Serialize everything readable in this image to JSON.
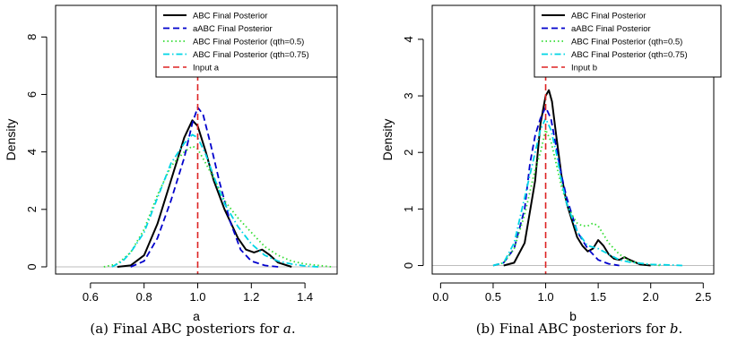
{
  "chart_data": [
    {
      "type": "line",
      "caption_prefix": "(a) Final ABC posteriors for ",
      "caption_var": "a",
      "caption_suffix": ".",
      "xlabel": "a",
      "ylabel": "Density",
      "xlim": [
        0.47,
        1.52
      ],
      "ylim": [
        -0.25,
        9.1
      ],
      "xticks": [
        0.6,
        0.8,
        1.0,
        1.2,
        1.4
      ],
      "xtick_labels": [
        "0.6",
        "0.8",
        "1.0",
        "1.2",
        "1.4"
      ],
      "yticks": [
        0,
        2,
        4,
        6,
        8
      ],
      "ytick_labels": [
        "0",
        "2",
        "4",
        "6",
        "8"
      ],
      "legend_position": "top-right",
      "input_value": 1.0,
      "input_label": "Input a",
      "series": [
        {
          "name": "ABC Final Posterior",
          "color": "#000000",
          "dash": "solid",
          "x": [
            0.7,
            0.75,
            0.8,
            0.85,
            0.9,
            0.95,
            0.98,
            1.0,
            1.03,
            1.06,
            1.1,
            1.15,
            1.18,
            1.21,
            1.24,
            1.27,
            1.3,
            1.35
          ],
          "y": [
            0.0,
            0.05,
            0.4,
            1.5,
            3.0,
            4.5,
            5.1,
            4.9,
            4.0,
            3.0,
            2.0,
            1.0,
            0.6,
            0.5,
            0.6,
            0.4,
            0.15,
            0.0
          ]
        },
        {
          "name": "aABC Final Posterior",
          "color": "#0000cc",
          "dash": "dashed",
          "x": [
            0.75,
            0.8,
            0.85,
            0.9,
            0.95,
            0.98,
            1.0,
            1.02,
            1.05,
            1.08,
            1.12,
            1.16,
            1.2,
            1.25,
            1.3
          ],
          "y": [
            0.0,
            0.2,
            1.0,
            2.3,
            3.8,
            5.0,
            5.55,
            5.3,
            4.2,
            3.0,
            1.6,
            0.6,
            0.2,
            0.05,
            0.0
          ]
        },
        {
          "name": "ABC Final Posterior (qth=0.5)",
          "color": "#33dd33",
          "dash": "dotted",
          "x": [
            0.65,
            0.7,
            0.75,
            0.8,
            0.85,
            0.9,
            0.95,
            0.98,
            1.0,
            1.03,
            1.07,
            1.1,
            1.15,
            1.2,
            1.25,
            1.3,
            1.35,
            1.4,
            1.45,
            1.5
          ],
          "y": [
            0.0,
            0.1,
            0.5,
            1.3,
            2.5,
            3.5,
            4.0,
            4.2,
            4.1,
            3.6,
            2.9,
            2.3,
            1.7,
            1.2,
            0.7,
            0.4,
            0.2,
            0.1,
            0.05,
            0.0
          ]
        },
        {
          "name": "ABC Final Posterior (qth=0.75)",
          "color": "#00d5e5",
          "dash": "dashdot",
          "x": [
            0.68,
            0.72,
            0.75,
            0.8,
            0.85,
            0.9,
            0.95,
            0.98,
            1.0,
            1.03,
            1.07,
            1.1,
            1.15,
            1.2,
            1.25,
            1.3,
            1.35,
            1.4,
            1.45
          ],
          "y": [
            0.0,
            0.2,
            0.5,
            1.2,
            2.4,
            3.6,
            4.3,
            4.6,
            4.5,
            3.9,
            2.9,
            2.2,
            1.4,
            0.8,
            0.4,
            0.2,
            0.1,
            0.03,
            0.0
          ]
        }
      ]
    },
    {
      "type": "line",
      "caption_prefix": "(b) Final ABC posteriors for ",
      "caption_var": "b",
      "caption_suffix": ".",
      "xlabel": "b",
      "ylabel": "Density",
      "xlim": [
        -0.08,
        2.6
      ],
      "ylim": [
        -0.15,
        4.6
      ],
      "xticks": [
        0.0,
        0.5,
        1.0,
        1.5,
        2.0,
        2.5
      ],
      "xtick_labels": [
        "0.0",
        "0.5",
        "1.0",
        "1.5",
        "2.0",
        "2.5"
      ],
      "yticks": [
        0,
        1,
        2,
        3,
        4
      ],
      "ytick_labels": [
        "0",
        "1",
        "2",
        "3",
        "4"
      ],
      "legend_position": "top-right",
      "input_value": 1.0,
      "input_label": "Input b",
      "series": [
        {
          "name": "ABC Final Posterior",
          "color": "#000000",
          "dash": "solid",
          "x": [
            0.6,
            0.7,
            0.8,
            0.9,
            0.95,
            1.0,
            1.03,
            1.06,
            1.1,
            1.15,
            1.2,
            1.25,
            1.3,
            1.35,
            1.4,
            1.45,
            1.5,
            1.55,
            1.6,
            1.65,
            1.7,
            1.75,
            1.8,
            1.9,
            2.0
          ],
          "y": [
            0.0,
            0.05,
            0.4,
            1.5,
            2.5,
            3.0,
            3.1,
            2.9,
            2.3,
            1.6,
            1.1,
            0.8,
            0.5,
            0.35,
            0.25,
            0.3,
            0.45,
            0.35,
            0.2,
            0.12,
            0.1,
            0.15,
            0.1,
            0.02,
            0.0
          ]
        },
        {
          "name": "aABC Final Posterior",
          "color": "#0000cc",
          "dash": "dashed",
          "x": [
            0.5,
            0.6,
            0.7,
            0.8,
            0.85,
            0.9,
            0.95,
            1.0,
            1.05,
            1.1,
            1.15,
            1.2,
            1.3,
            1.4,
            1.5,
            1.6,
            1.7
          ],
          "y": [
            0.0,
            0.05,
            0.3,
            1.0,
            1.8,
            2.3,
            2.6,
            2.8,
            2.6,
            2.1,
            1.6,
            1.2,
            0.6,
            0.3,
            0.1,
            0.03,
            0.0
          ]
        },
        {
          "name": "ABC Final Posterior (qth=0.5)",
          "color": "#33dd33",
          "dash": "dotted",
          "x": [
            0.5,
            0.6,
            0.7,
            0.8,
            0.9,
            0.95,
            1.0,
            1.05,
            1.1,
            1.15,
            1.2,
            1.25,
            1.3,
            1.35,
            1.4,
            1.45,
            1.5,
            1.55,
            1.6,
            1.7,
            1.8,
            1.9,
            2.0,
            2.1
          ],
          "y": [
            0.0,
            0.05,
            0.3,
            0.9,
            1.7,
            2.0,
            2.4,
            2.2,
            1.8,
            1.4,
            1.1,
            0.9,
            0.75,
            0.7,
            0.7,
            0.75,
            0.7,
            0.55,
            0.4,
            0.2,
            0.08,
            0.04,
            0.02,
            0.0
          ]
        },
        {
          "name": "ABC Final Posterior (qth=0.75)",
          "color": "#00d5e5",
          "dash": "dashdot",
          "x": [
            0.5,
            0.6,
            0.7,
            0.8,
            0.9,
            0.95,
            1.0,
            1.05,
            1.1,
            1.15,
            1.2,
            1.3,
            1.4,
            1.5,
            1.6,
            1.7,
            1.8,
            1.9,
            2.0,
            2.2,
            2.3
          ],
          "y": [
            0.0,
            0.05,
            0.4,
            1.2,
            2.0,
            2.4,
            2.6,
            2.4,
            2.0,
            1.5,
            1.1,
            0.6,
            0.35,
            0.3,
            0.2,
            0.1,
            0.06,
            0.04,
            0.02,
            0.01,
            0.0
          ]
        }
      ]
    }
  ]
}
